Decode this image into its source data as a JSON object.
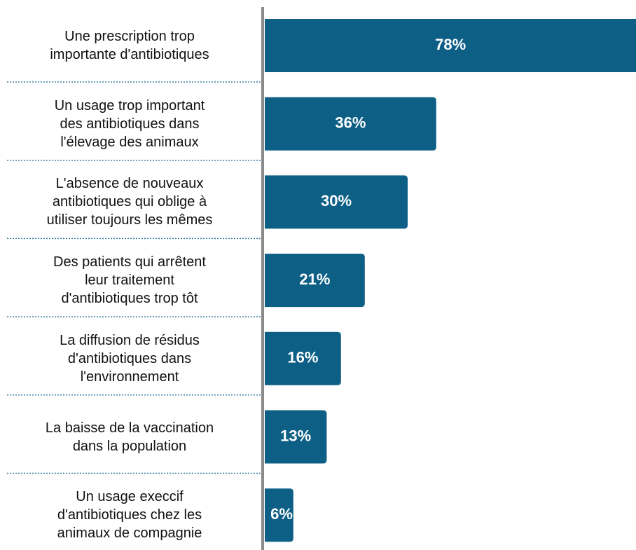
{
  "chart_data": {
    "type": "bar",
    "orientation": "horizontal",
    "categories": [
      "Une prescription trop\nimportante d'antibiotiques",
      "Un usage trop important\ndes antibiotiques dans\nl'élevage des animaux",
      "L'absence de nouveaux\nantibiotiques qui oblige à\nutiliser toujours les mêmes",
      "Des patients qui arrêtent\nleur traitement\nd'antibiotiques trop tôt",
      "La diffusion de résidus\nd'antibiotiques dans\nl'environnement",
      "La baisse de la vaccination\ndans la population",
      "Un usage execcif\nd'antibiotiques chez les\nanimaux de compagnie"
    ],
    "values": [
      78,
      36,
      30,
      21,
      16,
      13,
      6
    ],
    "value_labels": [
      "78%",
      "36%",
      "30%",
      "21%",
      "16%",
      "13%",
      "6%"
    ],
    "color": "#0d5f86"
  }
}
